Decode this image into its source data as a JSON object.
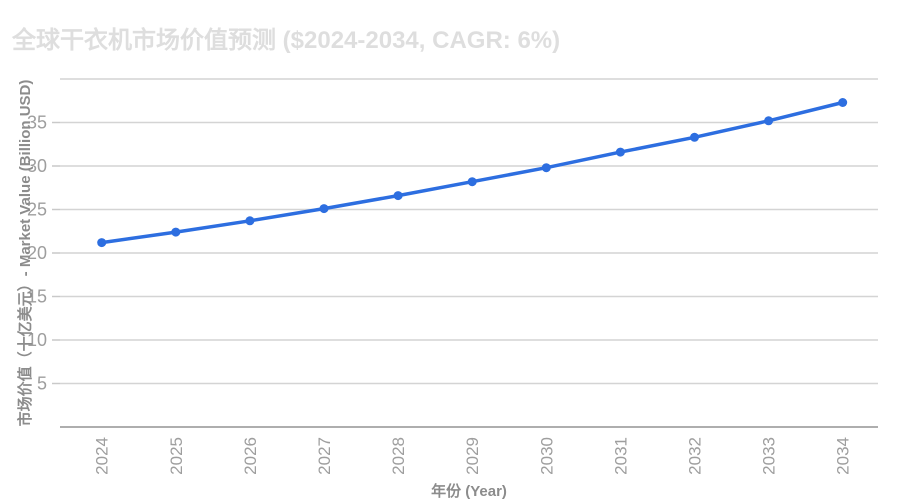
{
  "chart_data": {
    "type": "line",
    "title": "全球干衣机市场价值预测 ($2024-2034, CAGR: 6%)",
    "xlabel": "年份 (Year)",
    "ylabel": "市场价值（十亿美元）- Market Value (Billion USD)",
    "categories": [
      "2024",
      "2025",
      "2026",
      "2027",
      "2028",
      "2029",
      "2030",
      "2031",
      "2032",
      "2033",
      "2034"
    ],
    "series": [
      {
        "name": "Market Value (Billion USD)",
        "values": [
          21.2,
          22.4,
          23.7,
          25.1,
          26.6,
          28.2,
          29.8,
          31.6,
          33.3,
          35.2,
          37.3
        ]
      }
    ],
    "ylim": [
      0,
      40
    ],
    "y_tick_labels": [
      5,
      10,
      15,
      20,
      25,
      30,
      35
    ],
    "y_grid_step": 5,
    "grid": true,
    "legend_position": "none",
    "x_label_rotation": -90,
    "colors": {
      "line": "#2d6ee0",
      "point": "#2d6ee0",
      "title_text": "#dedede",
      "tick_text": "#9e9e9e",
      "axis_title_text": "#8c8c8c",
      "grid_line": "#d4d4d4",
      "axis_line": "#aeaeae"
    }
  }
}
